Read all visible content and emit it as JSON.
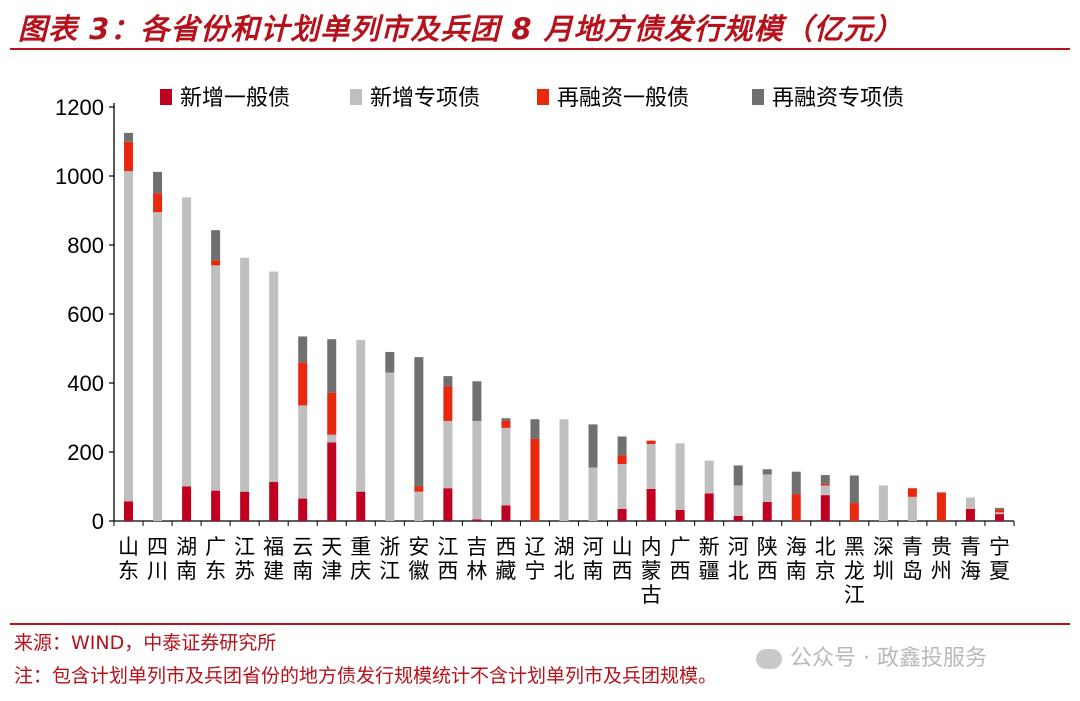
{
  "header": {
    "title": "图表 3：各省份和计划单列市及兵团 8 月地方债发行规模（亿元）"
  },
  "footer": {
    "source": "来源：WIND，中泰证券研究所",
    "note": "注：包含计划单列市及兵团省份的地方债发行规模统计不含计划单列市及兵团规模。"
  },
  "watermark": {
    "text": "公众号 · 政鑫投服务"
  },
  "chart_data": {
    "type": "bar",
    "stacked": true,
    "ylim": [
      0,
      1200
    ],
    "yticks": [
      "0",
      "200",
      "400",
      "600",
      "800",
      "1000",
      "1200"
    ],
    "legend_position": "top",
    "categories": [
      "山东",
      "四川",
      "湖南",
      "广东",
      "江苏",
      "福建",
      "云南",
      "天津",
      "重庆",
      "浙江",
      "安徽",
      "江西",
      "吉林",
      "西藏",
      "辽宁",
      "湖北",
      "河南",
      "山西",
      "内蒙古",
      "广西",
      "新疆",
      "河北",
      "陕西",
      "海南",
      "北京",
      "黑龙江",
      "深圳",
      "青岛",
      "贵州",
      "青海",
      "宁夏"
    ],
    "series": [
      {
        "name": "新增一般债",
        "color": "#c00020",
        "values": [
          57,
          0,
          100,
          88,
          85,
          113,
          65,
          228,
          85,
          0,
          0,
          95,
          5,
          45,
          0,
          0,
          0,
          35,
          93,
          32,
          80,
          15,
          55,
          0,
          75,
          0,
          0,
          0,
          0,
          35,
          20
        ]
      },
      {
        "name": "新增专项债",
        "color": "#bfbfbf",
        "values": [
          957,
          895,
          838,
          653,
          678,
          610,
          270,
          22,
          440,
          430,
          85,
          195,
          285,
          225,
          0,
          295,
          155,
          130,
          130,
          193,
          95,
          88,
          80,
          0,
          28,
          0,
          103,
          70,
          0,
          33,
          5
        ]
      },
      {
        "name": "再融资一般债",
        "color": "#e8290f",
        "values": [
          85,
          55,
          0,
          15,
          0,
          0,
          125,
          122,
          0,
          0,
          15,
          100,
          0,
          20,
          238,
          0,
          0,
          25,
          10,
          0,
          0,
          0,
          0,
          78,
          5,
          52,
          0,
          25,
          83,
          0,
          8
        ]
      },
      {
        "name": "再融资专项债",
        "color": "#707070",
        "values": [
          26,
          62,
          0,
          87,
          0,
          0,
          75,
          155,
          0,
          60,
          375,
          30,
          115,
          8,
          57,
          0,
          125,
          55,
          0,
          0,
          0,
          58,
          15,
          65,
          25,
          80,
          0,
          0,
          0,
          0,
          5
        ]
      }
    ]
  }
}
